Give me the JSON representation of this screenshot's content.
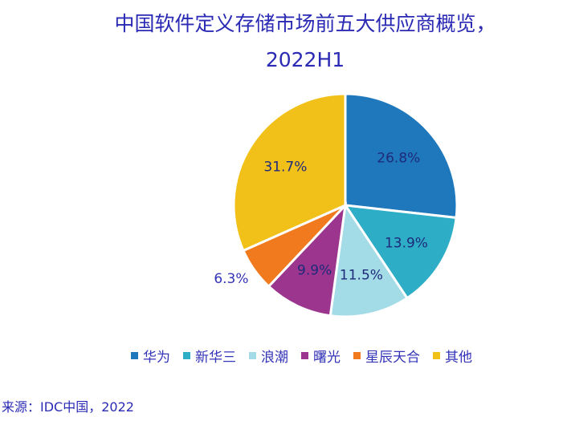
{
  "chart_data": {
    "type": "pie",
    "title_line1": "中国软件定义存储市场前五大供应商概览，",
    "title_line2": "2022H1",
    "categories": [
      "华为",
      "新华三",
      "浪潮",
      "曙光",
      "星辰天合",
      "其他"
    ],
    "values": [
      26.8,
      13.9,
      11.5,
      9.9,
      6.3,
      31.7
    ],
    "data_labels": [
      "26.8%",
      "13.9%",
      "11.5%",
      "9.9%",
      "6.3%",
      "31.7%"
    ],
    "colors": [
      "#1f78bc",
      "#2eadc6",
      "#a3dbe6",
      "#9b358d",
      "#f07a1d",
      "#f2c119"
    ],
    "start": "12 o'clock, clockwise",
    "legend_position": "bottom"
  },
  "source": "来源：IDC中国，2022"
}
